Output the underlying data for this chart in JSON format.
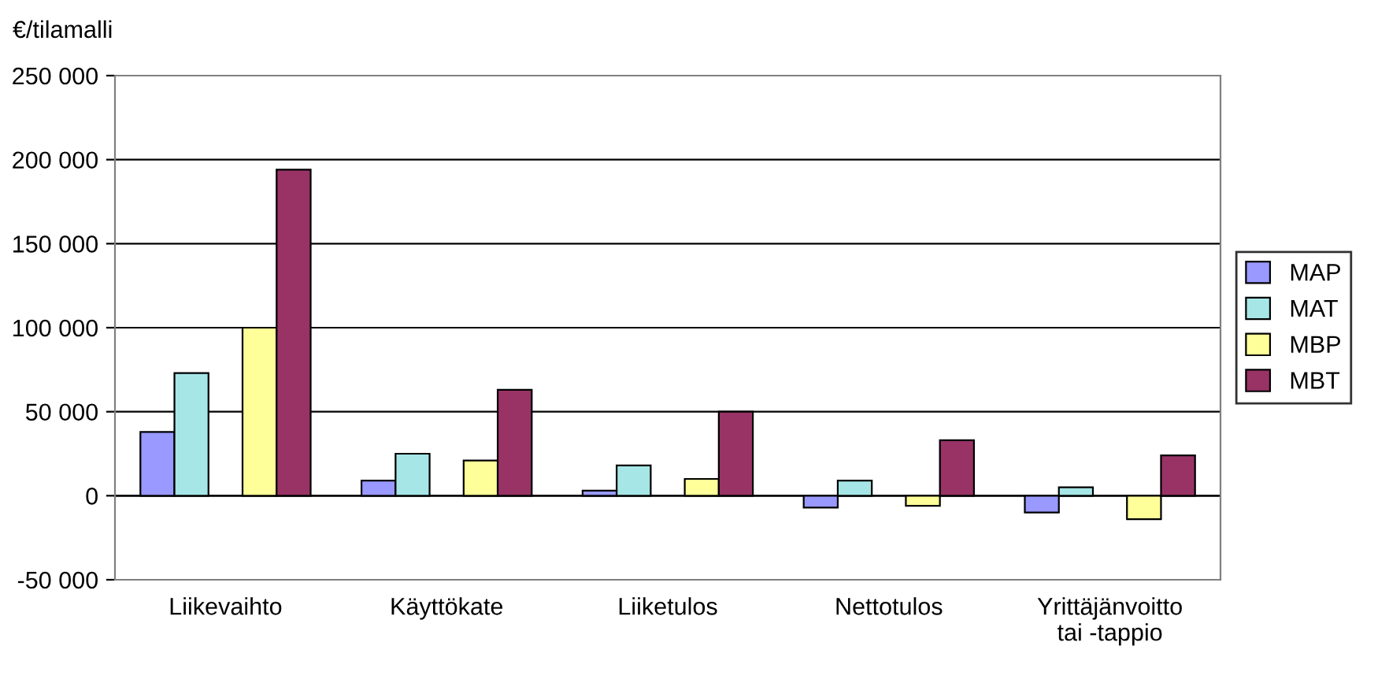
{
  "chart_data": {
    "type": "bar",
    "ylabel": "€/tilamalli",
    "categories": [
      "Liikevaihto",
      "Käyttökate",
      "Liiketulos",
      "Nettotulos",
      "Yrittäjänvoitto\ntai -tappio"
    ],
    "series": [
      {
        "name": "MAP",
        "color": "#9999ff",
        "values": [
          38000,
          9000,
          3000,
          -7000,
          -10000
        ]
      },
      {
        "name": "MAT",
        "color": "#a6e6e6",
        "values": [
          73000,
          25000,
          18000,
          9000,
          5000
        ]
      },
      {
        "name": "MBP",
        "color": "#ffff99",
        "values": [
          100000,
          21000,
          10000,
          -6000,
          -14000
        ]
      },
      {
        "name": "MBT",
        "color": "#993366",
        "values": [
          194000,
          63000,
          50000,
          33000,
          24000
        ]
      }
    ],
    "ylim": [
      -50000,
      250000
    ],
    "yticks": [
      {
        "value": -50000,
        "label": "-50 000"
      },
      {
        "value": 0,
        "label": "0"
      },
      {
        "value": 50000,
        "label": "50 000"
      },
      {
        "value": 100000,
        "label": "100 000"
      },
      {
        "value": 150000,
        "label": "150 000"
      },
      {
        "value": 200000,
        "label": "200 000"
      },
      {
        "value": 250000,
        "label": "250 000"
      }
    ],
    "grid": "y",
    "legend": "right"
  }
}
